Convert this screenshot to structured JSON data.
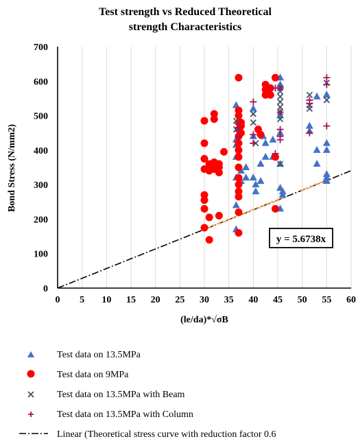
{
  "chart_data": {
    "type": "scatter",
    "title": [
      "Test strength vs Reduced Theoretical",
      "strength Characteristics"
    ],
    "xlabel": "(le/da)*√σB",
    "ylabel": "Bond Stress (N/mm2)",
    "xlim": [
      0,
      60
    ],
    "ylim": [
      0,
      700
    ],
    "xticks": [
      0,
      5,
      10,
      15,
      20,
      25,
      30,
      35,
      40,
      45,
      50,
      55,
      60
    ],
    "yticks": [
      0,
      100,
      200,
      300,
      400,
      500,
      600,
      700
    ],
    "grid": "vertical",
    "legend_position": "bottom",
    "equation_label": "y = 5.6738x",
    "colors": {
      "triangle": "#4472c4",
      "circle": "#ff0000",
      "cross": "#44546a",
      "plus": "#a5125a",
      "trend": "#000000",
      "orange": "#f4a460"
    },
    "series": [
      {
        "name": "Test data on 13.5MPa",
        "marker": "triangle",
        "x": [
          36.5,
          36.5,
          36.5,
          36.5,
          36.5,
          36.5,
          36.5,
          37.5,
          37.5,
          37.5,
          38.5,
          38.5,
          40,
          40,
          40,
          40.5,
          40.5,
          41.5,
          41.5,
          42,
          42.5,
          42.5,
          44,
          44,
          45.5,
          45.5,
          45.5,
          45.5,
          45.5,
          45.5,
          45.5,
          46,
          46,
          51.5,
          51.5,
          53,
          53,
          53,
          55,
          55,
          55,
          55,
          55,
          55,
          55
        ],
        "y": [
          530,
          430,
          415,
          380,
          320,
          240,
          170,
          480,
          340,
          310,
          350,
          320,
          520,
          440,
          320,
          300,
          280,
          360,
          310,
          440,
          420,
          380,
          430,
          380,
          610,
          590,
          500,
          450,
          360,
          290,
          230,
          280,
          270,
          470,
          455,
          400,
          360,
          555,
          560,
          420,
          400,
          330,
          310,
          560,
          320
        ]
      },
      {
        "name": "Test data on 9MPa",
        "marker": "circle",
        "x": [
          30,
          30,
          30,
          30,
          30,
          30,
          30,
          30,
          31,
          31,
          31,
          31,
          32,
          32,
          32,
          32,
          32,
          33,
          33,
          33,
          33,
          34,
          37,
          37,
          37,
          37,
          37,
          37,
          37,
          37,
          37,
          37,
          37,
          37,
          37,
          37,
          37,
          37,
          37.5,
          37.5,
          37.5,
          41,
          41.5,
          42.5,
          42.5,
          42.5,
          43.5,
          43.5,
          44.5,
          44.5,
          44.5
        ],
        "y": [
          485,
          420,
          375,
          345,
          270,
          255,
          230,
          175,
          360,
          340,
          205,
          140,
          505,
          490,
          365,
          355,
          345,
          360,
          350,
          335,
          210,
          395,
          610,
          515,
          500,
          480,
          460,
          440,
          420,
          400,
          380,
          350,
          320,
          300,
          280,
          265,
          220,
          160,
          480,
          470,
          450,
          460,
          445,
          590,
          575,
          560,
          580,
          560,
          610,
          380,
          230
        ]
      },
      {
        "name": "Test data on 13.5MPa with Beam",
        "marker": "cross",
        "x": [
          36.5,
          36.5,
          40,
          40,
          40.5,
          45.5,
          45.5,
          45.5,
          45.5,
          45.5,
          45.5,
          45.5,
          45.5,
          51.5,
          51.5,
          51.5,
          55,
          55
        ],
        "y": [
          485,
          460,
          505,
          480,
          420,
          580,
          570,
          555,
          540,
          525,
          510,
          490,
          360,
          560,
          530,
          520,
          545,
          595
        ]
      },
      {
        "name": "Test data on 13.5MPa with Column",
        "marker": "plus",
        "x": [
          37,
          37,
          40,
          40,
          40,
          44.5,
          44.5,
          45.5,
          45.5,
          45.5,
          45.5,
          45.5,
          51.5,
          51.5,
          51.5,
          55,
          55,
          55
        ],
        "y": [
          465,
          440,
          540,
          445,
          420,
          580,
          390,
          580,
          510,
          460,
          440,
          430,
          545,
          535,
          450,
          610,
          590,
          470
        ]
      }
    ],
    "trendline": {
      "name": "Linear (Theoretical stress curve with reduction factor 0.6",
      "slope": 5.6738,
      "x_range": [
        0,
        60
      ]
    },
    "reduced_points": {
      "marker": "small-orange-dash",
      "x": [
        31,
        32,
        33,
        34,
        35,
        36,
        37,
        38,
        39,
        40,
        41,
        42,
        43,
        44,
        45,
        46,
        50,
        51,
        52,
        53,
        54,
        55
      ],
      "y": [
        176,
        182,
        187,
        193,
        199,
        204,
        210,
        216,
        221,
        227,
        233,
        238,
        244,
        250,
        255,
        261,
        284,
        289,
        295,
        301,
        306,
        312
      ]
    }
  }
}
